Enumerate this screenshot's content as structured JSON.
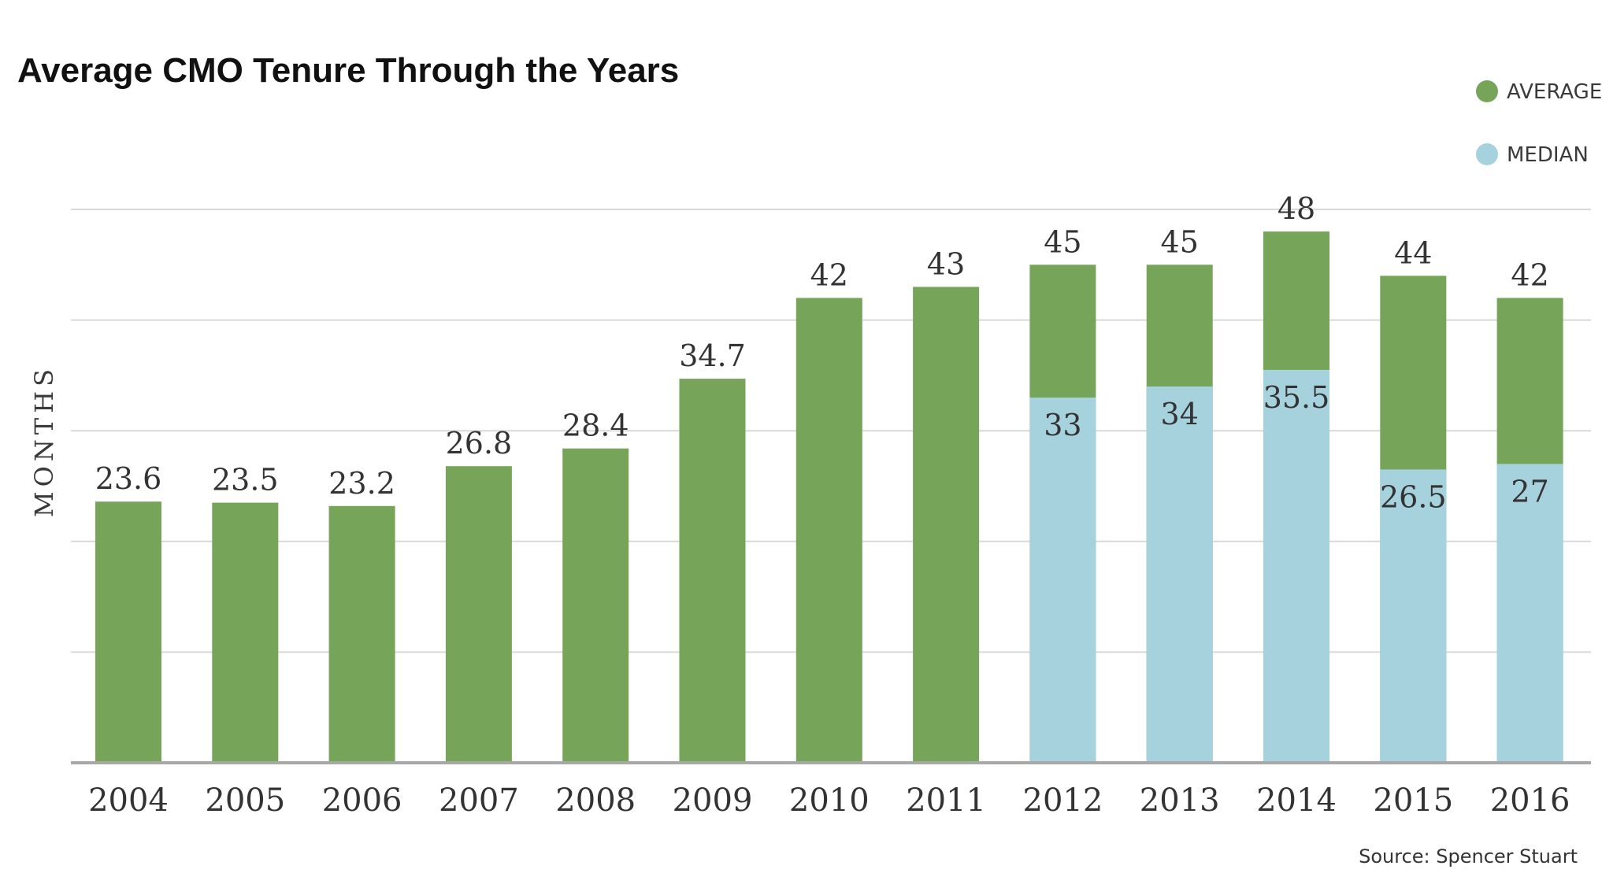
{
  "chart_data": {
    "type": "bar",
    "title": "Average CMO Tenure Through the Years",
    "ylabel": "MONTHS",
    "xlabel": "",
    "ylim": [
      0,
      50
    ],
    "grid": true,
    "legend_position": "top-right",
    "categories": [
      "2004",
      "2005",
      "2006",
      "2007",
      "2008",
      "2009",
      "2010",
      "2011",
      "2012",
      "2013",
      "2014",
      "2015",
      "2016"
    ],
    "series": [
      {
        "name": "AVERAGE",
        "color": "#76A55A",
        "values": [
          23.6,
          23.5,
          23.2,
          26.8,
          28.4,
          34.7,
          42,
          43,
          45,
          45,
          48,
          44,
          42
        ],
        "labels": [
          "23.6",
          "23.5",
          "23.2",
          "26.8",
          "28.4",
          "34.7",
          "42",
          "43",
          "45",
          "45",
          "48",
          "44",
          "42"
        ]
      },
      {
        "name": "MEDIAN",
        "color": "#A6D2DE",
        "values": [
          null,
          null,
          null,
          null,
          null,
          null,
          null,
          null,
          33,
          34,
          35.5,
          26.5,
          27
        ],
        "labels": [
          "",
          "",
          "",
          "",
          "",
          "",
          "",
          "",
          "33",
          "34",
          "35.5",
          "26.5",
          "27"
        ]
      }
    ],
    "source": "Source: Spencer Stuart"
  }
}
